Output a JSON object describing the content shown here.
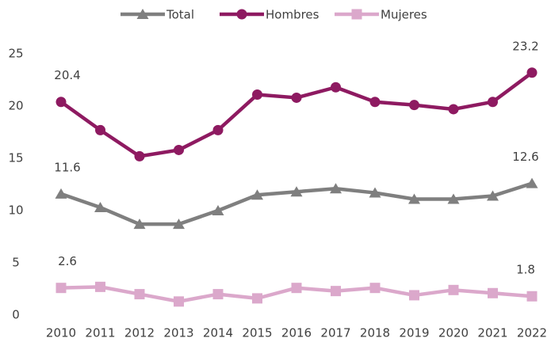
{
  "chart_data": {
    "type": "line",
    "categories": [
      "2010",
      "2011",
      "2012",
      "2013",
      "2014",
      "2015",
      "2016",
      "2017",
      "2018",
      "2019",
      "2020",
      "2021",
      "2022"
    ],
    "series": [
      {
        "name": "Total",
        "color": "#7f7f7f",
        "marker": "triangle",
        "values": [
          11.6,
          10.3,
          8.7,
          8.7,
          10.0,
          11.5,
          11.8,
          12.1,
          11.7,
          11.1,
          11.1,
          11.4,
          12.6
        ]
      },
      {
        "name": "Hombres",
        "color": "#8e1a61",
        "marker": "circle",
        "values": [
          20.4,
          17.7,
          15.2,
          15.8,
          17.7,
          21.1,
          20.8,
          21.8,
          20.4,
          20.1,
          19.7,
          20.4,
          23.2
        ]
      },
      {
        "name": "Mujeres",
        "color": "#dba8cb",
        "marker": "square",
        "values": [
          2.6,
          2.7,
          2.0,
          1.3,
          2.0,
          1.6,
          2.6,
          2.3,
          2.6,
          1.9,
          2.4,
          2.1,
          1.8
        ]
      }
    ],
    "ylim": [
      0,
      25
    ],
    "yticks": [
      0,
      5,
      10,
      15,
      20,
      25
    ],
    "grid": false,
    "legend": "top",
    "data_labels": "ends"
  }
}
